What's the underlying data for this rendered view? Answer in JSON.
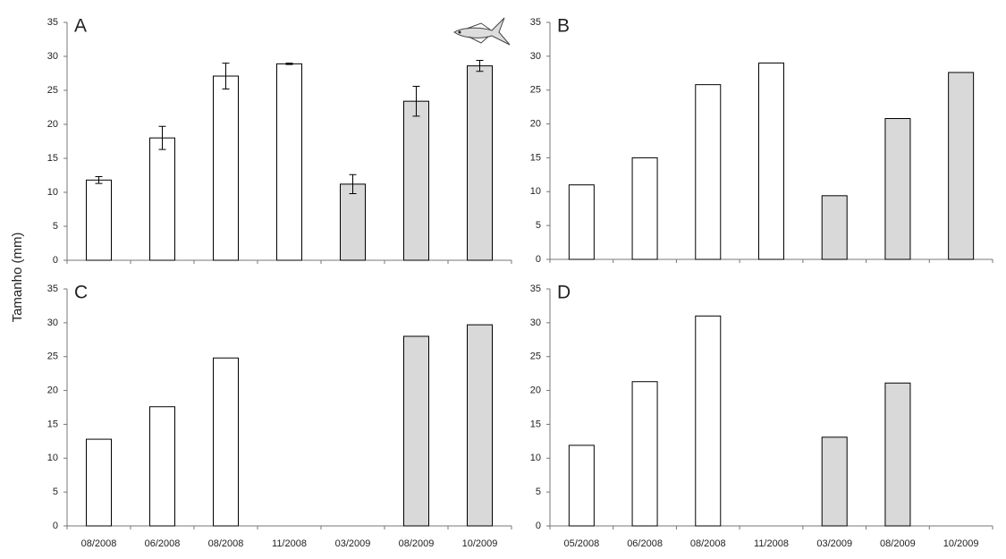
{
  "chart_data": [
    {
      "type": "bar",
      "panel": "A",
      "ylabel": "Tamanho (mm)",
      "categories": [
        null,
        null,
        null,
        null,
        null,
        null,
        null
      ],
      "values": [
        11.8,
        18,
        27.1,
        28.9,
        11.2,
        23.4,
        28.6
      ],
      "errors": [
        0.5,
        1.7,
        1.9,
        0.1,
        1.4,
        2.2,
        0.8
      ],
      "colors": [
        "#ffffff",
        "#ffffff",
        "#ffffff",
        "#ffffff",
        "#d9d9d9",
        "#d9d9d9",
        "#d9d9d9"
      ],
      "ylim": [
        0,
        35
      ],
      "yticks": [
        0,
        5,
        10,
        15,
        20,
        25,
        30,
        35
      ]
    },
    {
      "type": "bar",
      "panel": "B",
      "categories": [
        null,
        null,
        null,
        null,
        null,
        null,
        null
      ],
      "values": [
        11,
        15,
        25.8,
        29,
        9.4,
        20.8,
        27.6
      ],
      "colors": [
        "#ffffff",
        "#ffffff",
        "#ffffff",
        "#ffffff",
        "#d9d9d9",
        "#d9d9d9",
        "#d9d9d9"
      ],
      "ylim": [
        0,
        35
      ],
      "yticks": [
        0,
        5,
        10,
        15,
        20,
        25,
        30,
        35
      ]
    },
    {
      "type": "bar",
      "panel": "C",
      "categories": [
        "08/2008",
        "06/2008",
        "08/2008",
        "11/2008",
        "03/2009",
        "08/2009",
        "10/2009"
      ],
      "values": [
        12.8,
        17.6,
        24.8,
        null,
        null,
        28,
        29.7
      ],
      "colors": [
        "#ffffff",
        "#ffffff",
        "#ffffff",
        "#ffffff",
        "#d9d9d9",
        "#d9d9d9",
        "#d9d9d9"
      ],
      "ylim": [
        0,
        35
      ],
      "yticks": [
        0,
        5,
        10,
        15,
        20,
        25,
        30,
        35
      ]
    },
    {
      "type": "bar",
      "panel": "D",
      "categories": [
        "05/2008",
        "06/2008",
        "08/2008",
        "11/2008",
        "03/2009",
        "08/2009",
        "10/2009"
      ],
      "values": [
        11.9,
        21.3,
        31,
        null,
        13.1,
        21.1,
        null
      ],
      "colors": [
        "#ffffff",
        "#ffffff",
        "#ffffff",
        "#ffffff",
        "#d9d9d9",
        "#d9d9d9",
        "#d9d9d9"
      ],
      "ylim": [
        0,
        35
      ],
      "yticks": [
        0,
        5,
        10,
        15,
        20,
        25,
        30,
        35
      ]
    }
  ]
}
